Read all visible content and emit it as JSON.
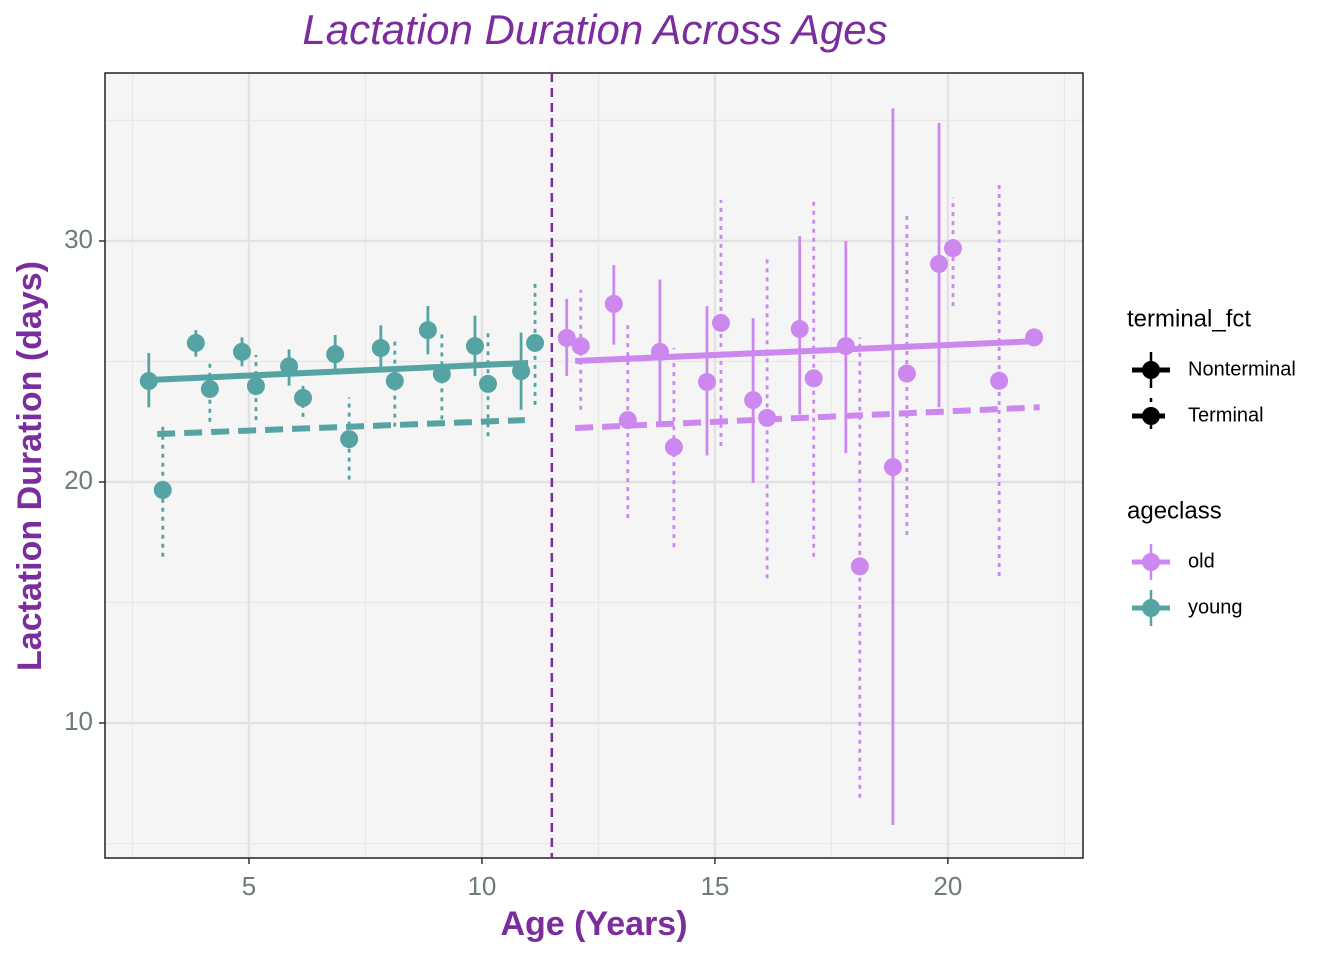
{
  "chart_data": {
    "type": "errorbar-scatter",
    "title": "Lactation Duration Across Ages",
    "x_label": "Age (Years)",
    "y_label": "Lactation Duration (days)",
    "xlim": [
      1.91,
      22.9
    ],
    "ylim": [
      4.4,
      36.97
    ],
    "xticks": [
      5,
      10,
      15,
      20
    ],
    "yticks": [
      10,
      20,
      30
    ],
    "grid": true,
    "vline": 11.5,
    "series": [
      {
        "color": "#56a3a3",
        "linetype": "solid",
        "x": [
          2.85,
          3.86,
          4.85,
          5.86,
          6.85,
          7.83,
          8.84,
          9.85,
          10.84
        ],
        "values": [
          24.19,
          25.77,
          25.4,
          24.8,
          25.3,
          25.56,
          26.3,
          25.64,
          24.6
        ],
        "lower": [
          23.1,
          25.2,
          24.8,
          24.0,
          24.6,
          24.6,
          25.3,
          24.4,
          23.0
        ],
        "upper": [
          25.35,
          26.3,
          26.0,
          25.5,
          26.1,
          26.5,
          27.3,
          26.9,
          26.2
        ],
        "fit_x": [
          2.85,
          10.99
        ],
        "fit_y": [
          24.23,
          24.94
        ]
      },
      {
        "color": "#56a3a3",
        "linetype": "dotted",
        "x": [
          3.15,
          4.16,
          5.15,
          6.16,
          7.15,
          8.13,
          9.14,
          10.13,
          11.14
        ],
        "values": [
          19.67,
          23.86,
          23.98,
          23.49,
          21.78,
          24.19,
          24.48,
          24.07,
          25.77
        ],
        "lower": [
          16.9,
          22.5,
          22.57,
          22.7,
          20.1,
          22.3,
          22.6,
          21.9,
          23.2
        ],
        "upper": [
          22.4,
          25.06,
          25.27,
          24.2,
          23.5,
          25.9,
          26.2,
          26.3,
          28.3
        ],
        "fit_x": [
          3.03,
          10.92
        ],
        "fit_y": [
          21.99,
          22.57
        ]
      },
      {
        "color": "#cc88ee",
        "linetype": "solid",
        "x": [
          11.82,
          12.83,
          13.82,
          14.83,
          15.82,
          16.82,
          17.81,
          18.82,
          19.81,
          21.85
        ],
        "values": [
          25.98,
          27.39,
          25.4,
          24.15,
          23.4,
          26.35,
          25.64,
          20.62,
          29.05,
          26.0
        ],
        "lower": [
          24.4,
          25.7,
          22.4,
          21.1,
          19.96,
          22.8,
          21.2,
          5.77,
          23.1,
          25.9
        ],
        "upper": [
          27.6,
          29.0,
          28.4,
          27.3,
          26.8,
          30.2,
          30.0,
          35.5,
          34.9,
          26.1
        ],
        "fit_x": [
          12.0,
          21.97
        ],
        "fit_y": [
          25.02,
          25.85
        ]
      },
      {
        "color": "#cc88ee",
        "linetype": "dotted",
        "x": [
          12.12,
          13.13,
          14.12,
          15.13,
          16.12,
          17.12,
          18.11,
          19.12,
          20.11,
          21.1
        ],
        "values": [
          25.64,
          22.57,
          21.45,
          26.6,
          22.66,
          24.3,
          16.5,
          24.5,
          29.7,
          24.2
        ],
        "lower": [
          23.0,
          18.5,
          17.3,
          21.5,
          16.0,
          16.9,
          6.9,
          17.8,
          27.3,
          16.1
        ],
        "upper": [
          27.97,
          26.7,
          25.56,
          31.7,
          29.4,
          31.7,
          26.0,
          31.2,
          31.8,
          32.4
        ],
        "fit_x": [
          12.0,
          21.97
        ],
        "fit_y": [
          22.24,
          23.1
        ]
      }
    ],
    "legends": [
      {
        "title": "terminal_fct",
        "entries": [
          {
            "label": "Nonterminal",
            "linetype": "solid",
            "color": "#000000"
          },
          {
            "label": "Terminal",
            "linetype": "dotted",
            "color": "#000000"
          }
        ]
      },
      {
        "title": "ageclass",
        "entries": [
          {
            "label": "old",
            "linetype": "solid",
            "color": "#cc88ee"
          },
          {
            "label": "young",
            "linetype": "solid",
            "color": "#56a3a3"
          }
        ]
      }
    ],
    "title_color": "#7b2d9e"
  }
}
